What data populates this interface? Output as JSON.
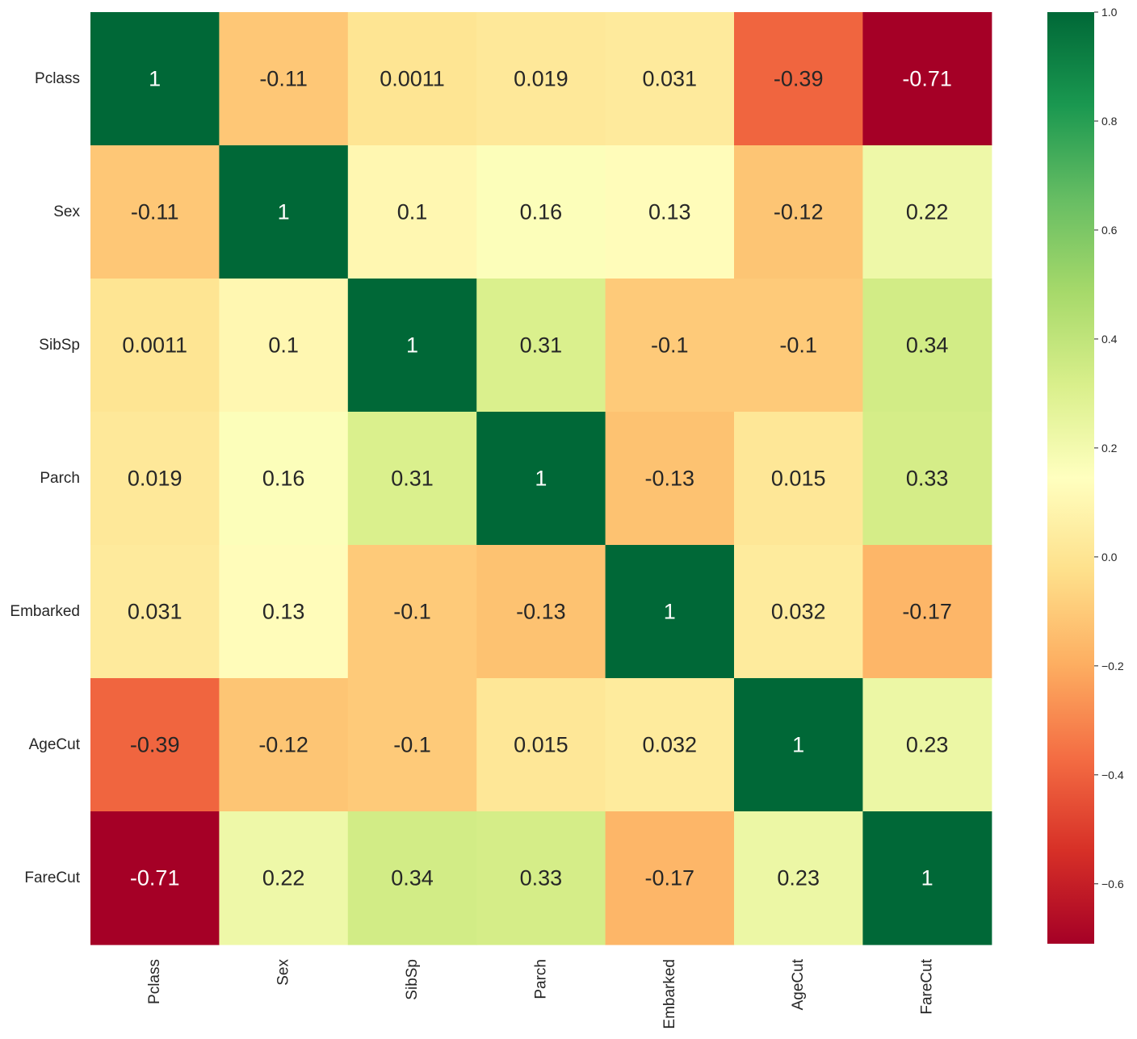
{
  "chart_data": {
    "type": "heatmap",
    "title": "",
    "xlabel": "",
    "ylabel": "",
    "x_labels": [
      "Pclass",
      "Sex",
      "SibSp",
      "Parch",
      "Embarked",
      "AgeCut",
      "FareCut"
    ],
    "y_labels": [
      "Pclass",
      "Sex",
      "SibSp",
      "Parch",
      "Embarked",
      "AgeCut",
      "FareCut"
    ],
    "values": [
      [
        1,
        -0.11,
        0.0011,
        0.019,
        0.031,
        -0.39,
        -0.71
      ],
      [
        -0.11,
        1,
        0.1,
        0.16,
        0.13,
        -0.12,
        0.22
      ],
      [
        0.0011,
        0.1,
        1,
        0.31,
        -0.1,
        -0.1,
        0.34
      ],
      [
        0.019,
        0.16,
        0.31,
        1,
        -0.13,
        0.015,
        0.33
      ],
      [
        0.031,
        0.13,
        -0.1,
        -0.13,
        1,
        0.032,
        -0.17
      ],
      [
        -0.39,
        -0.12,
        -0.1,
        0.015,
        0.032,
        1,
        0.23
      ],
      [
        -0.71,
        0.22,
        0.34,
        0.33,
        -0.17,
        0.23,
        1
      ]
    ],
    "annotations": [
      [
        "1",
        "-0.11",
        "0.0011",
        "0.019",
        "0.031",
        "-0.39",
        "-0.71"
      ],
      [
        "-0.11",
        "1",
        "0.1",
        "0.16",
        "0.13",
        "-0.12",
        "0.22"
      ],
      [
        "0.0011",
        "0.1",
        "1",
        "0.31",
        "-0.1",
        "-0.1",
        "0.34"
      ],
      [
        "0.019",
        "0.16",
        "0.31",
        "1",
        "-0.13",
        "0.015",
        "0.33"
      ],
      [
        "0.031",
        "0.13",
        "-0.1",
        "-0.13",
        "1",
        "0.032",
        "-0.17"
      ],
      [
        "-0.39",
        "-0.12",
        "-0.1",
        "0.015",
        "0.032",
        "1",
        "0.23"
      ],
      [
        "-0.71",
        "0.22",
        "0.34",
        "0.33",
        "-0.17",
        "0.23",
        "1"
      ]
    ],
    "colormap": "RdYlGn",
    "vmin": -0.71,
    "vmax": 1,
    "colorbar": {
      "ticks": [
        1.0,
        0.8,
        0.6,
        0.4,
        0.2,
        0.0,
        -0.2,
        -0.4,
        -0.6
      ],
      "tick_labels": [
        "1.0",
        "0.8",
        "0.6",
        "0.4",
        "0.2",
        "0.0",
        "−0.2",
        "−0.4",
        "−0.6"
      ]
    },
    "grid": false,
    "legend": "colorbar-right"
  }
}
